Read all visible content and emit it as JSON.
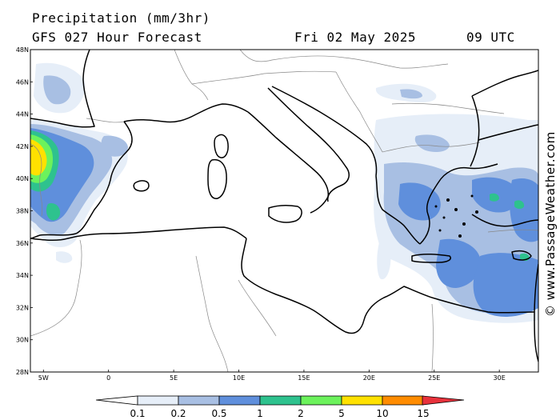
{
  "header": {
    "title": "Precipitation (mm/3hr)",
    "subtitle": "GFS 027 Hour Forecast",
    "valid_date": "Fri 02 May 2025",
    "valid_time": "09 UTC"
  },
  "credit": "© www.PassageWeather.com",
  "map": {
    "region": "Mediterranean",
    "lon_range": [
      -6,
      33
    ],
    "lat_range": [
      28,
      48
    ],
    "lat_ticks": [
      "28N",
      "30N",
      "32N",
      "34N",
      "36N",
      "38N",
      "40N",
      "42N",
      "44N",
      "46N",
      "48N"
    ],
    "lon_ticks": [
      "5W",
      "0",
      "5E",
      "10E",
      "15E",
      "20E",
      "25E",
      "30E"
    ]
  },
  "legend": {
    "thresholds": [
      "0.1",
      "0.2",
      "0.5",
      "1",
      "2",
      "5",
      "10",
      "15"
    ],
    "colors": [
      "#ffffff",
      "#e6eef8",
      "#a8bfe3",
      "#5f8fdc",
      "#2ec28e",
      "#6cf25c",
      "#ffe100",
      "#ff8c00",
      "#e8323c"
    ]
  },
  "colors": {
    "very_light": "#e6eef8",
    "light": "#a8bfe3",
    "medium": "#5f8fdc",
    "teal": "#2ec28e",
    "green": "#6cf25c",
    "yellow": "#ffe100"
  }
}
